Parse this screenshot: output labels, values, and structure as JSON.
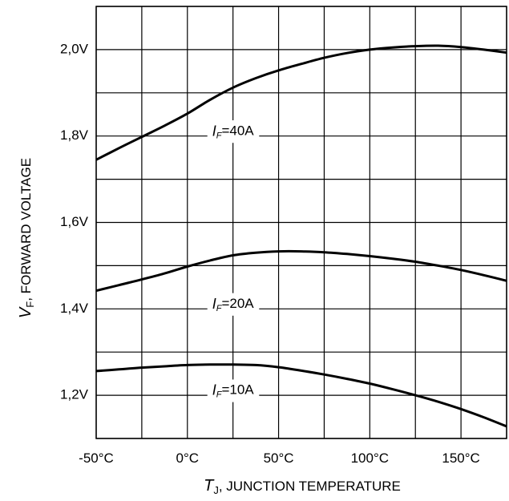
{
  "chart_data": {
    "type": "line",
    "xlabel": {
      "symbol": "T",
      "subscript": "J",
      "text": ", JUNCTION TEMPERATURE"
    },
    "ylabel": {
      "symbol": "V",
      "subscript": "F",
      "text": ", FORWARD VOLTAGE"
    },
    "xlim": [
      -50,
      175
    ],
    "ylim": [
      1.1,
      2.1
    ],
    "grid": true,
    "x_gridlines": [
      -50,
      -25,
      0,
      25,
      50,
      75,
      100,
      125,
      150,
      175
    ],
    "y_gridlines": [
      1.1,
      1.2,
      1.3,
      1.4,
      1.5,
      1.6,
      1.7,
      1.8,
      1.9,
      2.0,
      2.1
    ],
    "x_ticks": [
      {
        "value": -50,
        "label": "-50°C"
      },
      {
        "value": 0,
        "label": "0°C"
      },
      {
        "value": 50,
        "label": "50°C"
      },
      {
        "value": 100,
        "label": "100°C"
      },
      {
        "value": 150,
        "label": "150°C"
      }
    ],
    "y_ticks": [
      {
        "value": 1.2,
        "label": "1,2V"
      },
      {
        "value": 1.4,
        "label": "1,4V"
      },
      {
        "value": 1.6,
        "label": "1,6V"
      },
      {
        "value": 1.8,
        "label": "1,8V"
      },
      {
        "value": 2.0,
        "label": "2,0V"
      }
    ],
    "series": [
      {
        "name": "40A",
        "label_symbol": "I",
        "label_subscript": "F",
        "label_text": "=40A",
        "label_at": {
          "x": 25,
          "y": 1.81
        },
        "x": [
          -50,
          -37.5,
          -25,
          -12.5,
          0,
          12.5,
          25,
          37.5,
          50,
          62.5,
          75,
          87.5,
          100,
          112.5,
          125,
          137.5,
          150,
          162.5,
          175
        ],
        "y": [
          1.745,
          1.772,
          1.798,
          1.824,
          1.852,
          1.884,
          1.912,
          1.934,
          1.952,
          1.967,
          1.981,
          1.992,
          2.0,
          2.005,
          2.008,
          2.009,
          2.006,
          2.0,
          1.993
        ]
      },
      {
        "name": "20A",
        "label_symbol": "I",
        "label_subscript": "F",
        "label_text": "=20A",
        "label_at": {
          "x": 25,
          "y": 1.41
        },
        "x": [
          -50,
          -37.5,
          -25,
          -12.5,
          0,
          12.5,
          25,
          37.5,
          50,
          62.5,
          75,
          87.5,
          100,
          112.5,
          125,
          137.5,
          150,
          162.5,
          175
        ],
        "y": [
          1.442,
          1.455,
          1.468,
          1.482,
          1.498,
          1.512,
          1.524,
          1.53,
          1.533,
          1.533,
          1.531,
          1.527,
          1.522,
          1.516,
          1.509,
          1.5,
          1.49,
          1.478,
          1.465
        ]
      },
      {
        "name": "10A",
        "label_symbol": "I",
        "label_subscript": "F",
        "label_text": "=10A",
        "label_at": {
          "x": 25,
          "y": 1.21
        },
        "x": [
          -50,
          -37.5,
          -25,
          -12.5,
          0,
          12.5,
          25,
          37.5,
          50,
          62.5,
          75,
          87.5,
          100,
          112.5,
          125,
          137.5,
          150,
          162.5,
          175
        ],
        "y": [
          1.256,
          1.26,
          1.264,
          1.267,
          1.27,
          1.271,
          1.271,
          1.27,
          1.265,
          1.257,
          1.248,
          1.238,
          1.227,
          1.214,
          1.2,
          1.185,
          1.168,
          1.149,
          1.128
        ]
      }
    ]
  }
}
